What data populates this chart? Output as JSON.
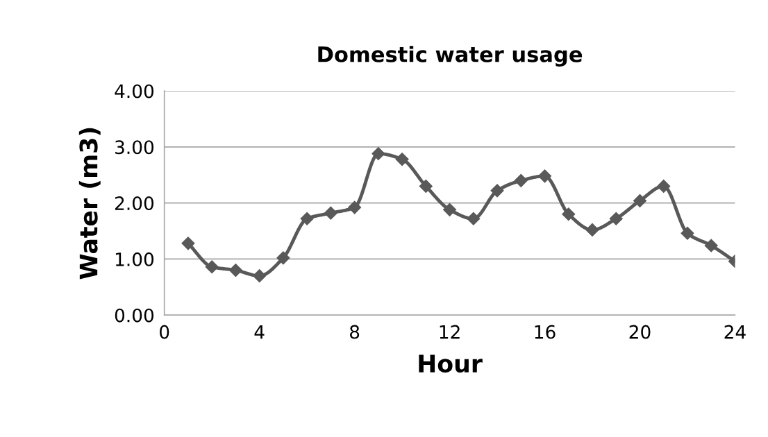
{
  "chart_data": {
    "type": "line",
    "title": "Domestic water usage",
    "xlabel": "Hour",
    "ylabel": "Water (m3)",
    "x": [
      1,
      2,
      3,
      4,
      5,
      6,
      7,
      8,
      9,
      10,
      11,
      12,
      13,
      14,
      15,
      16,
      17,
      18,
      19,
      20,
      21,
      22,
      23,
      24
    ],
    "series": [
      {
        "color": "#595959",
        "values": [
          1.28,
          0.86,
          0.8,
          0.7,
          1.02,
          1.72,
          1.82,
          1.92,
          2.88,
          2.78,
          2.3,
          1.88,
          1.72,
          2.22,
          2.4,
          2.48,
          1.8,
          1.52,
          1.72,
          2.04,
          2.3,
          1.46,
          1.24,
          0.96
        ]
      }
    ],
    "xlim": [
      0,
      24
    ],
    "xticks": [
      0,
      4,
      8,
      12,
      16,
      20,
      24
    ],
    "ylim": [
      0,
      4
    ],
    "yticks": [
      {
        "value": 0,
        "label": "0.00"
      },
      {
        "value": 1,
        "label": "1.00"
      },
      {
        "value": 2,
        "label": "2.00"
      },
      {
        "value": 3,
        "label": "3.00"
      },
      {
        "value": 4,
        "label": "4.00"
      }
    ],
    "grid": "y",
    "marker": "diamond",
    "line_style": "solid"
  }
}
